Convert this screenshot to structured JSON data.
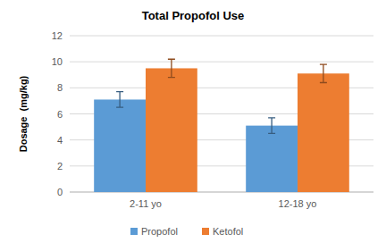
{
  "chart_data": {
    "type": "bar",
    "title": "Total Propofol Use",
    "y_label": "Dosage  (mg/kg)",
    "categories": [
      "2-11 yo",
      "12-18 yo"
    ],
    "series": [
      {
        "name": "Propofol",
        "color": "#5b9bd5",
        "values": [
          7.1,
          5.1
        ],
        "errors": [
          0.6,
          0.6
        ]
      },
      {
        "name": "Ketofol",
        "color": "#ed7d31",
        "values": [
          9.5,
          9.1
        ],
        "errors": [
          0.7,
          0.7
        ]
      }
    ],
    "ylim": [
      0,
      12
    ],
    "yticks": [
      0,
      2,
      4,
      6,
      8,
      10,
      12
    ],
    "grid": true,
    "legend": "bottom"
  }
}
